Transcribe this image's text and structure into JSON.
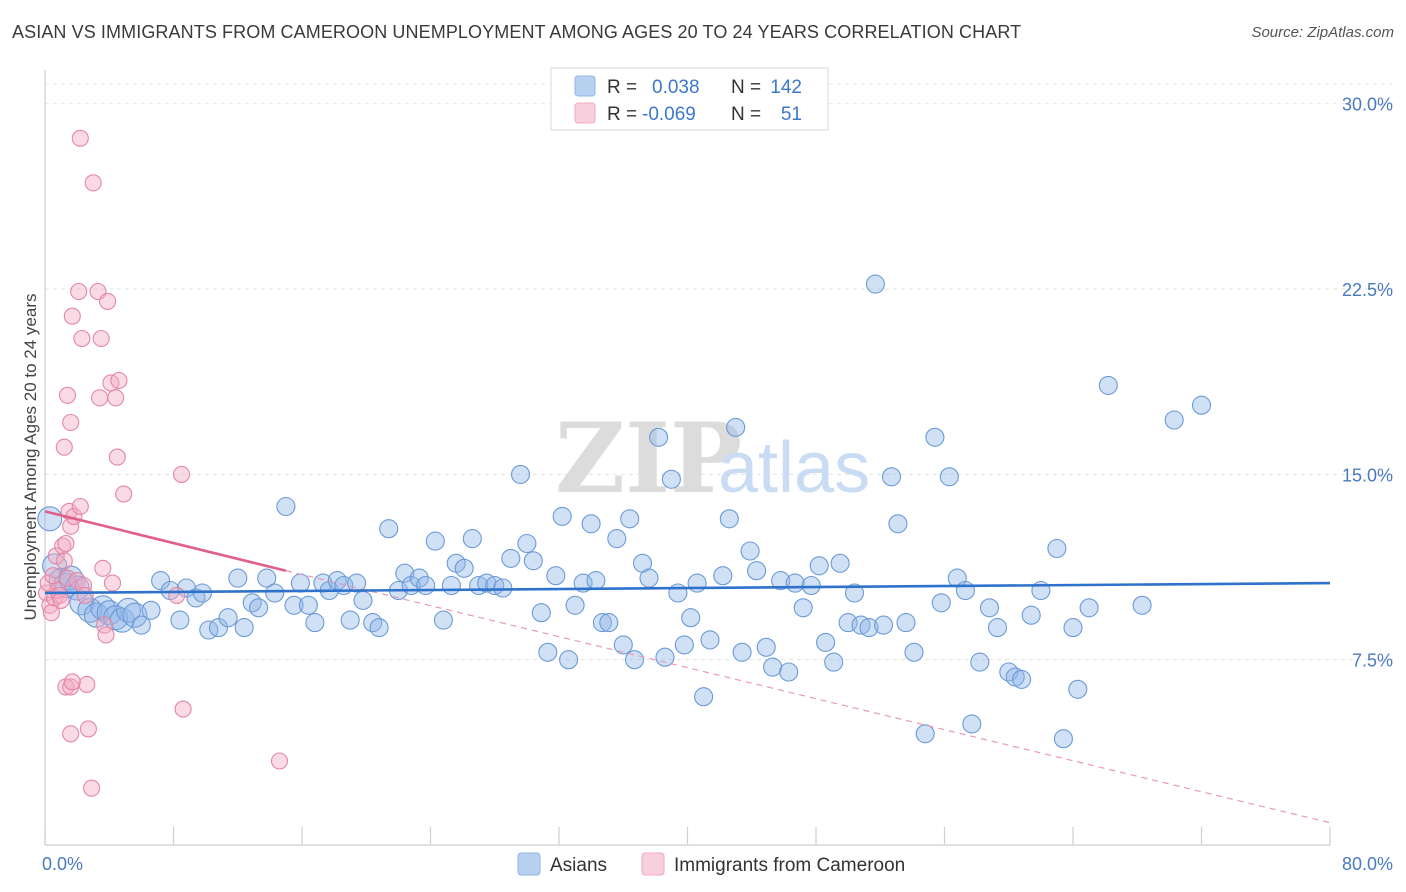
{
  "header": {
    "title": "ASIAN VS IMMIGRANTS FROM CAMEROON UNEMPLOYMENT AMONG AGES 20 TO 24 YEARS CORRELATION CHART",
    "source": "Source: ZipAtlas.com"
  },
  "watermark": {
    "zip": "ZIP",
    "atlas": "atlas"
  },
  "legend": {
    "r_label": "R =",
    "n_label": "N =",
    "rows": [
      {
        "r": "0.038",
        "n": "142",
        "color": "#8fb6e8"
      },
      {
        "r": "-0.069",
        "n": "51",
        "color": "#f2a9c0"
      }
    ]
  },
  "bottom_legend": {
    "asians": "Asians",
    "cameroon": "Immigrants from Cameroon"
  },
  "chart_data": {
    "type": "scatter",
    "title": "ASIAN VS IMMIGRANTS FROM CAMEROON UNEMPLOYMENT AMONG AGES 20 TO 24 YEARS CORRELATION CHART",
    "xlabel": "",
    "ylabel": "Unemployment Among Ages 20 to 24 years",
    "xlim": [
      0,
      80
    ],
    "ylim": [
      0,
      31
    ],
    "x_tick_labels": [
      "0.0%",
      "80.0%"
    ],
    "y_ticks": [
      7.5,
      15.0,
      22.5,
      30.0
    ],
    "y_tick_labels": [
      "7.5%",
      "15.0%",
      "22.5%",
      "30.0%"
    ],
    "grid": true,
    "series": [
      {
        "name": "Asians",
        "color": "#8fb6e8",
        "stroke": "#6b9bd6",
        "trend": {
          "x0": 0,
          "y0": 10.2,
          "x1": 80,
          "y1": 10.6,
          "color": "#2f72cc",
          "dash": false
        },
        "points": [
          [
            0.3,
            13.2
          ],
          [
            0.6,
            11.3
          ],
          [
            1.0,
            10.7
          ],
          [
            1.3,
            10.5
          ],
          [
            1.6,
            10.8
          ],
          [
            2.0,
            10.4
          ],
          [
            2.3,
            9.8
          ],
          [
            2.8,
            9.5
          ],
          [
            3.2,
            9.3
          ],
          [
            3.6,
            9.6
          ],
          [
            4.0,
            9.4
          ],
          [
            4.4,
            9.2
          ],
          [
            4.8,
            9.1
          ],
          [
            5.2,
            9.5
          ],
          [
            5.6,
            9.3
          ],
          [
            6.0,
            8.9
          ],
          [
            6.6,
            9.5
          ],
          [
            7.2,
            10.7
          ],
          [
            7.8,
            10.3
          ],
          [
            8.4,
            9.1
          ],
          [
            8.8,
            10.4
          ],
          [
            9.4,
            10.0
          ],
          [
            9.8,
            10.2
          ],
          [
            10.2,
            8.7
          ],
          [
            10.8,
            8.8
          ],
          [
            11.4,
            9.2
          ],
          [
            12.0,
            10.8
          ],
          [
            12.4,
            8.8
          ],
          [
            12.9,
            9.8
          ],
          [
            13.3,
            9.6
          ],
          [
            13.8,
            10.8
          ],
          [
            14.3,
            10.2
          ],
          [
            15.0,
            13.7
          ],
          [
            15.5,
            9.7
          ],
          [
            15.9,
            10.6
          ],
          [
            16.4,
            9.7
          ],
          [
            16.8,
            9.0
          ],
          [
            17.3,
            10.6
          ],
          [
            17.7,
            10.3
          ],
          [
            18.2,
            10.7
          ],
          [
            18.6,
            10.5
          ],
          [
            19.0,
            9.1
          ],
          [
            19.4,
            10.6
          ],
          [
            19.8,
            9.9
          ],
          [
            20.4,
            9.0
          ],
          [
            20.8,
            8.8
          ],
          [
            21.4,
            12.8
          ],
          [
            22.0,
            10.3
          ],
          [
            22.4,
            11.0
          ],
          [
            22.8,
            10.5
          ],
          [
            23.3,
            10.8
          ],
          [
            23.7,
            10.5
          ],
          [
            24.3,
            12.3
          ],
          [
            24.8,
            9.1
          ],
          [
            25.3,
            10.5
          ],
          [
            25.6,
            11.4
          ],
          [
            26.1,
            11.2
          ],
          [
            26.6,
            12.4
          ],
          [
            27.0,
            10.5
          ],
          [
            27.5,
            10.6
          ],
          [
            28.0,
            10.5
          ],
          [
            28.5,
            10.4
          ],
          [
            29.0,
            11.6
          ],
          [
            29.6,
            15.0
          ],
          [
            30.0,
            12.2
          ],
          [
            30.4,
            11.5
          ],
          [
            30.9,
            9.4
          ],
          [
            31.3,
            7.8
          ],
          [
            31.8,
            10.9
          ],
          [
            32.2,
            13.3
          ],
          [
            32.6,
            7.5
          ],
          [
            33.0,
            9.7
          ],
          [
            33.5,
            10.6
          ],
          [
            34.0,
            13.0
          ],
          [
            34.3,
            10.7
          ],
          [
            34.7,
            9.0
          ],
          [
            35.1,
            9.0
          ],
          [
            35.6,
            12.4
          ],
          [
            36.0,
            8.1
          ],
          [
            36.4,
            13.2
          ],
          [
            36.7,
            7.5
          ],
          [
            37.2,
            11.4
          ],
          [
            37.6,
            10.8
          ],
          [
            38.2,
            16.5
          ],
          [
            38.6,
            7.6
          ],
          [
            39.0,
            14.8
          ],
          [
            39.4,
            10.2
          ],
          [
            39.8,
            8.1
          ],
          [
            40.2,
            9.2
          ],
          [
            40.6,
            10.6
          ],
          [
            41.0,
            6.0
          ],
          [
            41.4,
            8.3
          ],
          [
            42.2,
            10.9
          ],
          [
            42.6,
            13.2
          ],
          [
            43.0,
            16.9
          ],
          [
            43.4,
            7.8
          ],
          [
            43.9,
            11.9
          ],
          [
            44.3,
            11.1
          ],
          [
            44.9,
            8.0
          ],
          [
            45.3,
            7.2
          ],
          [
            45.8,
            10.7
          ],
          [
            46.3,
            7.0
          ],
          [
            46.7,
            10.6
          ],
          [
            47.2,
            9.6
          ],
          [
            47.7,
            10.5
          ],
          [
            48.2,
            11.3
          ],
          [
            48.6,
            8.2
          ],
          [
            49.1,
            7.4
          ],
          [
            49.5,
            11.4
          ],
          [
            50.0,
            9.0
          ],
          [
            50.4,
            10.2
          ],
          [
            50.8,
            8.9
          ],
          [
            51.3,
            8.8
          ],
          [
            51.7,
            22.7
          ],
          [
            52.2,
            8.9
          ],
          [
            52.7,
            14.9
          ],
          [
            53.1,
            13.0
          ],
          [
            53.6,
            9.0
          ],
          [
            54.1,
            7.8
          ],
          [
            54.8,
            4.5
          ],
          [
            55.4,
            16.5
          ],
          [
            55.8,
            9.8
          ],
          [
            56.3,
            14.9
          ],
          [
            56.8,
            10.8
          ],
          [
            57.3,
            10.3
          ],
          [
            57.7,
            4.9
          ],
          [
            58.2,
            7.4
          ],
          [
            58.8,
            9.6
          ],
          [
            59.3,
            8.8
          ],
          [
            60.0,
            7.0
          ],
          [
            60.4,
            6.8
          ],
          [
            60.8,
            6.7
          ],
          [
            61.4,
            9.3
          ],
          [
            62.0,
            10.3
          ],
          [
            63.0,
            12.0
          ],
          [
            63.4,
            4.3
          ],
          [
            64.0,
            8.8
          ],
          [
            64.3,
            6.3
          ],
          [
            65.0,
            9.6
          ],
          [
            66.2,
            18.6
          ],
          [
            68.3,
            9.7
          ],
          [
            70.3,
            17.2
          ],
          [
            72.0,
            17.8
          ]
        ]
      },
      {
        "name": "Immigrants from Cameroon",
        "color": "#f2a9c0",
        "stroke": "#e387a6",
        "trend": {
          "x0": 0,
          "y0": 13.5,
          "x1": 15,
          "y1": 11.1,
          "color": "#e0608a",
          "dash": false
        },
        "trend_ext": {
          "x0": 15,
          "y0": 11.1,
          "x1": 80,
          "y1": 0.9,
          "color": "#e89ab4",
          "dash": true
        },
        "points": [
          [
            0.1,
            10.2
          ],
          [
            0.2,
            10.6
          ],
          [
            0.3,
            9.7
          ],
          [
            0.4,
            9.4
          ],
          [
            0.5,
            10.9
          ],
          [
            0.6,
            10.0
          ],
          [
            0.7,
            11.7
          ],
          [
            0.8,
            10.3
          ],
          [
            0.9,
            10.1
          ],
          [
            1.0,
            9.9
          ],
          [
            1.1,
            12.1
          ],
          [
            1.2,
            11.5
          ],
          [
            1.3,
            12.2
          ],
          [
            1.4,
            10.8
          ],
          [
            1.5,
            13.5
          ],
          [
            1.6,
            12.9
          ],
          [
            1.8,
            13.3
          ],
          [
            2.0,
            10.7
          ],
          [
            2.2,
            13.7
          ],
          [
            2.4,
            10.5
          ],
          [
            1.2,
            16.1
          ],
          [
            1.4,
            18.2
          ],
          [
            1.6,
            17.1
          ],
          [
            1.7,
            21.4
          ],
          [
            2.1,
            22.4
          ],
          [
            2.2,
            28.6
          ],
          [
            2.3,
            20.5
          ],
          [
            2.5,
            10.1
          ],
          [
            2.6,
            6.5
          ],
          [
            2.7,
            4.7
          ],
          [
            2.9,
            2.3
          ],
          [
            3.0,
            26.8
          ],
          [
            3.3,
            22.4
          ],
          [
            3.4,
            18.1
          ],
          [
            3.5,
            20.5
          ],
          [
            3.6,
            11.2
          ],
          [
            3.7,
            8.9
          ],
          [
            3.8,
            8.5
          ],
          [
            3.9,
            22.0
          ],
          [
            4.1,
            18.7
          ],
          [
            4.2,
            10.6
          ],
          [
            4.4,
            18.1
          ],
          [
            4.5,
            15.7
          ],
          [
            4.6,
            18.8
          ],
          [
            4.9,
            14.2
          ],
          [
            1.3,
            6.4
          ],
          [
            1.6,
            6.4
          ],
          [
            1.7,
            6.6
          ],
          [
            1.6,
            4.5
          ],
          [
            8.5,
            15.0
          ],
          [
            8.2,
            10.1
          ],
          [
            8.6,
            5.5
          ],
          [
            14.6,
            3.4
          ]
        ]
      }
    ]
  }
}
